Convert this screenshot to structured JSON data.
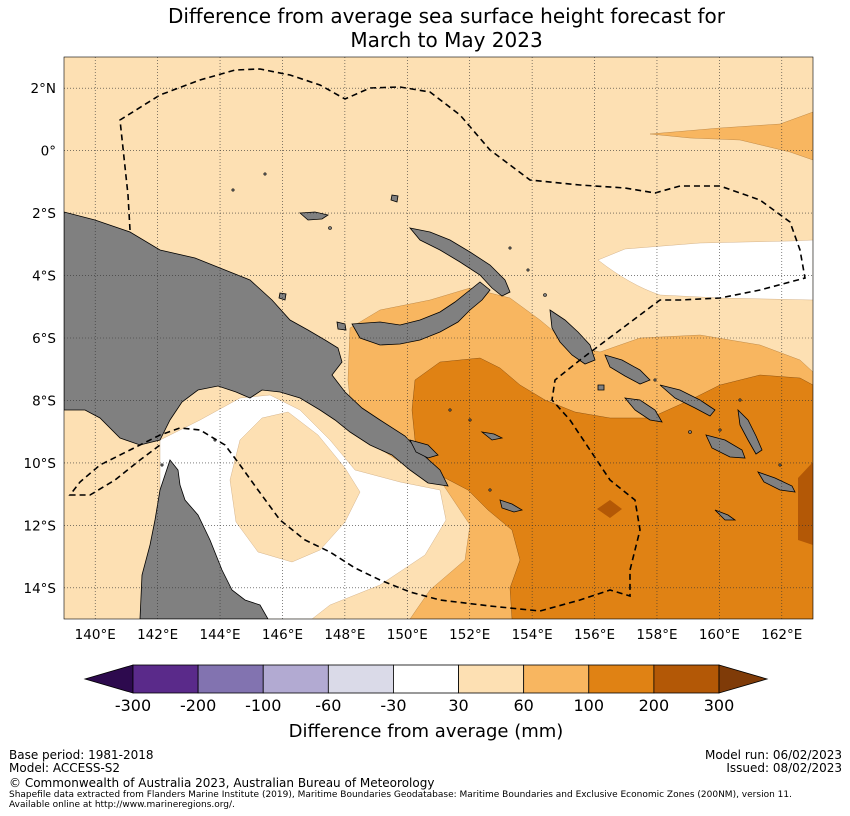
{
  "title": {
    "line1": "Difference from average sea surface height forecast for",
    "line2": "March to May 2023"
  },
  "axes": {
    "lat_labels": [
      "2°N",
      "0°",
      "2°S",
      "4°S",
      "6°S",
      "8°S",
      "10°S",
      "12°S",
      "14°S"
    ],
    "lon_labels": [
      "140°E",
      "142°E",
      "144°E",
      "146°E",
      "148°E",
      "150°E",
      "152°E",
      "154°E",
      "156°E",
      "158°E",
      "160°E",
      "162°E"
    ],
    "lon_range": [
      139,
      163
    ],
    "lat_range": [
      -15,
      3
    ]
  },
  "colorbar": {
    "title": "Difference from average (mm)",
    "labels": [
      "-300",
      "-200",
      "-100",
      "-60",
      "-30",
      "30",
      "60",
      "100",
      "200",
      "300"
    ],
    "colors": [
      "#2d0a4e",
      "#5a2a8a",
      "#8273b0",
      "#b2aad2",
      "#dadae8",
      "#ffffff",
      "#fde0b3",
      "#f8b660",
      "#e08214",
      "#b35806",
      "#7f3b08"
    ]
  },
  "footer": {
    "base_period": "Base period: 1981-2018",
    "model": "Model: ACCESS-S2",
    "model_run": "Model run: 06/02/2023",
    "issued": "Issued: 08/02/2023",
    "copyright": "© Commonwealth of Australia 2023, Australian Bureau of Meteorology",
    "source1": "Shapefile data extracted from Flanders Marine Institute (2019), Maritime Boundaries Geodatabase: Maritime Boundaries and Exclusive Economic Zones (200NM), version 11.",
    "source2": "Available online at http://www.marineregions.org/."
  },
  "colors": {
    "land": "#808080",
    "band_30_60": "#fde0b3",
    "band_60_100": "#f8b660",
    "band_100_200": "#e08214",
    "band_200_300": "#b35806"
  }
}
